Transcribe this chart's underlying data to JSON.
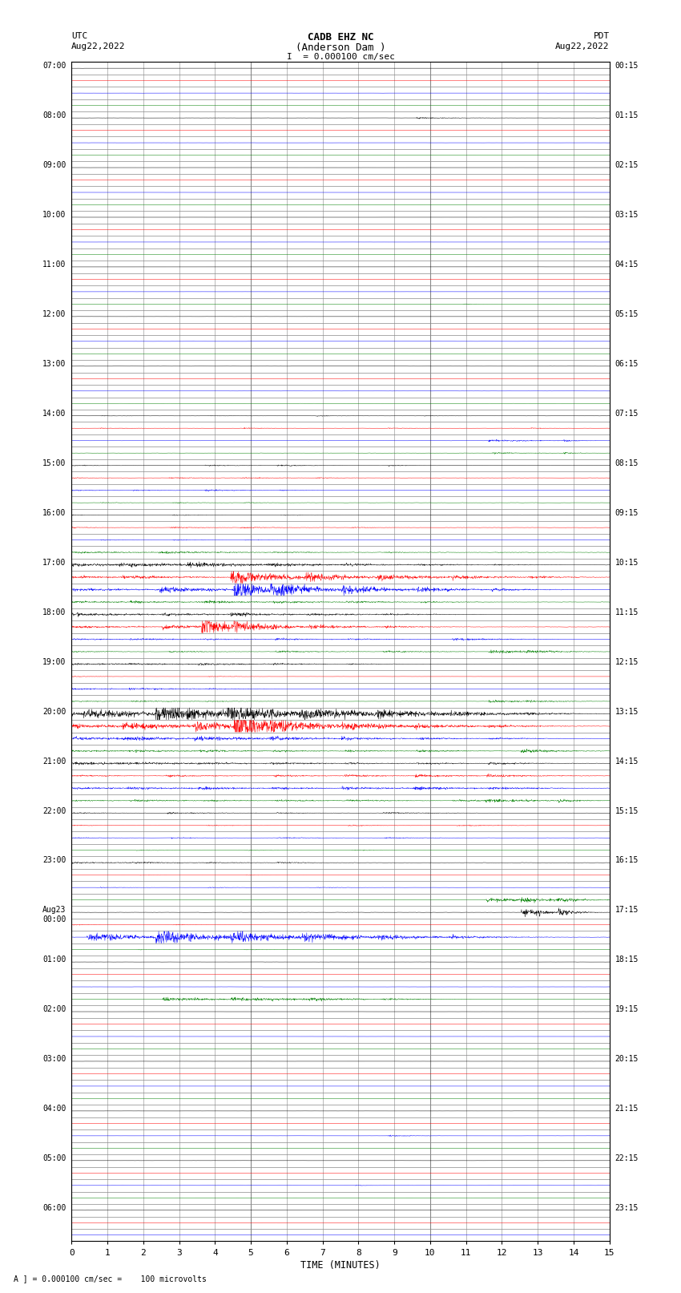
{
  "title_line1": "CADB EHZ NC",
  "title_line2": "(Anderson Dam )",
  "title_scale": "I  = 0.000100 cm/sec",
  "label_left_top": "UTC",
  "label_left_date": "Aug22,2022",
  "label_right_top": "PDT",
  "label_right_date": "Aug22,2022",
  "xlabel": "TIME (MINUTES)",
  "footer": "A ] = 0.000100 cm/sec =    100 microvolts",
  "xlim": [
    0,
    15
  ],
  "xticks": [
    0,
    1,
    2,
    3,
    4,
    5,
    6,
    7,
    8,
    9,
    10,
    11,
    12,
    13,
    14,
    15
  ],
  "colors_cycle": [
    "black",
    "red",
    "blue",
    "green"
  ],
  "background": "white",
  "grid_color": "#888888",
  "figsize": [
    8.5,
    16.13
  ],
  "dpi": 100,
  "left_times": [
    "07:00",
    "",
    "",
    "",
    "08:00",
    "",
    "",
    "",
    "09:00",
    "",
    "",
    "",
    "10:00",
    "",
    "",
    "",
    "11:00",
    "",
    "",
    "",
    "12:00",
    "",
    "",
    "",
    "13:00",
    "",
    "",
    "",
    "14:00",
    "",
    "",
    "",
    "15:00",
    "",
    "",
    "",
    "16:00",
    "",
    "",
    "",
    "17:00",
    "",
    "",
    "",
    "18:00",
    "",
    "",
    "",
    "19:00",
    "",
    "",
    "",
    "20:00",
    "",
    "",
    "",
    "21:00",
    "",
    "",
    "",
    "22:00",
    "",
    "",
    "",
    "23:00",
    "",
    "",
    "",
    "Aug23\n00:00",
    "",
    "",
    "",
    "01:00",
    "",
    "",
    "",
    "02:00",
    "",
    "",
    "",
    "03:00",
    "",
    "",
    "",
    "04:00",
    "",
    "",
    "",
    "05:00",
    "",
    "",
    "",
    "06:00",
    "",
    ""
  ],
  "right_times": [
    "00:15",
    "",
    "",
    "",
    "01:15",
    "",
    "",
    "",
    "02:15",
    "",
    "",
    "",
    "03:15",
    "",
    "",
    "",
    "04:15",
    "",
    "",
    "",
    "05:15",
    "",
    "",
    "",
    "06:15",
    "",
    "",
    "",
    "07:15",
    "",
    "",
    "",
    "08:15",
    "",
    "",
    "",
    "09:15",
    "",
    "",
    "",
    "10:15",
    "",
    "",
    "",
    "11:15",
    "",
    "",
    "",
    "12:15",
    "",
    "",
    "",
    "13:15",
    "",
    "",
    "",
    "14:15",
    "",
    "",
    "",
    "15:15",
    "",
    "",
    "",
    "16:15",
    "",
    "",
    "",
    "17:15",
    "",
    "",
    "",
    "18:15",
    "",
    "",
    "",
    "19:15",
    "",
    "",
    "",
    "20:15",
    "",
    "",
    "",
    "21:15",
    "",
    "",
    "",
    "22:15",
    "",
    "",
    "",
    "23:15",
    "",
    ""
  ]
}
